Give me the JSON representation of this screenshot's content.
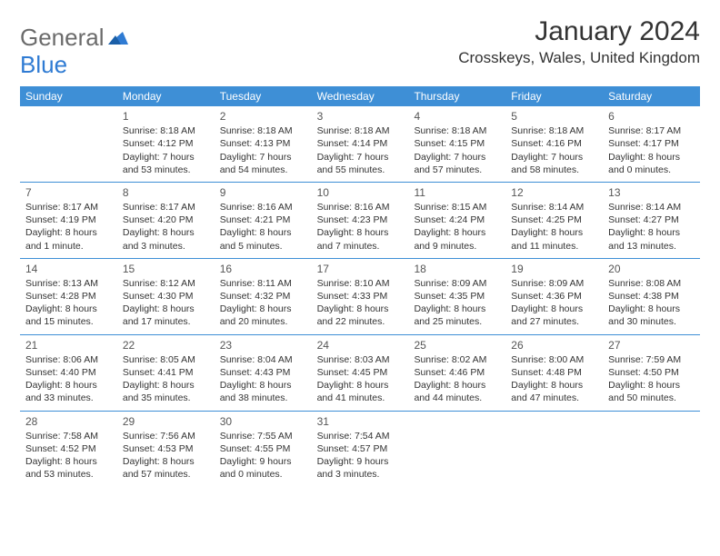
{
  "logo": {
    "text1": "General",
    "text2": "Blue"
  },
  "title": "January 2024",
  "location": "Crosskeys, Wales, United Kingdom",
  "colors": {
    "header_bg": "#3e8fd6",
    "header_text": "#ffffff",
    "body_text": "#333333",
    "logo_gray": "#6b6b6b",
    "logo_blue": "#2f7bd3",
    "divider": "#3e8fd6"
  },
  "weekdays": [
    "Sunday",
    "Monday",
    "Tuesday",
    "Wednesday",
    "Thursday",
    "Friday",
    "Saturday"
  ],
  "weeks": [
    [
      {
        "empty": true
      },
      {
        "num": "1",
        "sunrise": "Sunrise: 8:18 AM",
        "sunset": "Sunset: 4:12 PM",
        "daylight": "Daylight: 7 hours and 53 minutes."
      },
      {
        "num": "2",
        "sunrise": "Sunrise: 8:18 AM",
        "sunset": "Sunset: 4:13 PM",
        "daylight": "Daylight: 7 hours and 54 minutes."
      },
      {
        "num": "3",
        "sunrise": "Sunrise: 8:18 AM",
        "sunset": "Sunset: 4:14 PM",
        "daylight": "Daylight: 7 hours and 55 minutes."
      },
      {
        "num": "4",
        "sunrise": "Sunrise: 8:18 AM",
        "sunset": "Sunset: 4:15 PM",
        "daylight": "Daylight: 7 hours and 57 minutes."
      },
      {
        "num": "5",
        "sunrise": "Sunrise: 8:18 AM",
        "sunset": "Sunset: 4:16 PM",
        "daylight": "Daylight: 7 hours and 58 minutes."
      },
      {
        "num": "6",
        "sunrise": "Sunrise: 8:17 AM",
        "sunset": "Sunset: 4:17 PM",
        "daylight": "Daylight: 8 hours and 0 minutes."
      }
    ],
    [
      {
        "num": "7",
        "sunrise": "Sunrise: 8:17 AM",
        "sunset": "Sunset: 4:19 PM",
        "daylight": "Daylight: 8 hours and 1 minute."
      },
      {
        "num": "8",
        "sunrise": "Sunrise: 8:17 AM",
        "sunset": "Sunset: 4:20 PM",
        "daylight": "Daylight: 8 hours and 3 minutes."
      },
      {
        "num": "9",
        "sunrise": "Sunrise: 8:16 AM",
        "sunset": "Sunset: 4:21 PM",
        "daylight": "Daylight: 8 hours and 5 minutes."
      },
      {
        "num": "10",
        "sunrise": "Sunrise: 8:16 AM",
        "sunset": "Sunset: 4:23 PM",
        "daylight": "Daylight: 8 hours and 7 minutes."
      },
      {
        "num": "11",
        "sunrise": "Sunrise: 8:15 AM",
        "sunset": "Sunset: 4:24 PM",
        "daylight": "Daylight: 8 hours and 9 minutes."
      },
      {
        "num": "12",
        "sunrise": "Sunrise: 8:14 AM",
        "sunset": "Sunset: 4:25 PM",
        "daylight": "Daylight: 8 hours and 11 minutes."
      },
      {
        "num": "13",
        "sunrise": "Sunrise: 8:14 AM",
        "sunset": "Sunset: 4:27 PM",
        "daylight": "Daylight: 8 hours and 13 minutes."
      }
    ],
    [
      {
        "num": "14",
        "sunrise": "Sunrise: 8:13 AM",
        "sunset": "Sunset: 4:28 PM",
        "daylight": "Daylight: 8 hours and 15 minutes."
      },
      {
        "num": "15",
        "sunrise": "Sunrise: 8:12 AM",
        "sunset": "Sunset: 4:30 PM",
        "daylight": "Daylight: 8 hours and 17 minutes."
      },
      {
        "num": "16",
        "sunrise": "Sunrise: 8:11 AM",
        "sunset": "Sunset: 4:32 PM",
        "daylight": "Daylight: 8 hours and 20 minutes."
      },
      {
        "num": "17",
        "sunrise": "Sunrise: 8:10 AM",
        "sunset": "Sunset: 4:33 PM",
        "daylight": "Daylight: 8 hours and 22 minutes."
      },
      {
        "num": "18",
        "sunrise": "Sunrise: 8:09 AM",
        "sunset": "Sunset: 4:35 PM",
        "daylight": "Daylight: 8 hours and 25 minutes."
      },
      {
        "num": "19",
        "sunrise": "Sunrise: 8:09 AM",
        "sunset": "Sunset: 4:36 PM",
        "daylight": "Daylight: 8 hours and 27 minutes."
      },
      {
        "num": "20",
        "sunrise": "Sunrise: 8:08 AM",
        "sunset": "Sunset: 4:38 PM",
        "daylight": "Daylight: 8 hours and 30 minutes."
      }
    ],
    [
      {
        "num": "21",
        "sunrise": "Sunrise: 8:06 AM",
        "sunset": "Sunset: 4:40 PM",
        "daylight": "Daylight: 8 hours and 33 minutes."
      },
      {
        "num": "22",
        "sunrise": "Sunrise: 8:05 AM",
        "sunset": "Sunset: 4:41 PM",
        "daylight": "Daylight: 8 hours and 35 minutes."
      },
      {
        "num": "23",
        "sunrise": "Sunrise: 8:04 AM",
        "sunset": "Sunset: 4:43 PM",
        "daylight": "Daylight: 8 hours and 38 minutes."
      },
      {
        "num": "24",
        "sunrise": "Sunrise: 8:03 AM",
        "sunset": "Sunset: 4:45 PM",
        "daylight": "Daylight: 8 hours and 41 minutes."
      },
      {
        "num": "25",
        "sunrise": "Sunrise: 8:02 AM",
        "sunset": "Sunset: 4:46 PM",
        "daylight": "Daylight: 8 hours and 44 minutes."
      },
      {
        "num": "26",
        "sunrise": "Sunrise: 8:00 AM",
        "sunset": "Sunset: 4:48 PM",
        "daylight": "Daylight: 8 hours and 47 minutes."
      },
      {
        "num": "27",
        "sunrise": "Sunrise: 7:59 AM",
        "sunset": "Sunset: 4:50 PM",
        "daylight": "Daylight: 8 hours and 50 minutes."
      }
    ],
    [
      {
        "num": "28",
        "sunrise": "Sunrise: 7:58 AM",
        "sunset": "Sunset: 4:52 PM",
        "daylight": "Daylight: 8 hours and 53 minutes."
      },
      {
        "num": "29",
        "sunrise": "Sunrise: 7:56 AM",
        "sunset": "Sunset: 4:53 PM",
        "daylight": "Daylight: 8 hours and 57 minutes."
      },
      {
        "num": "30",
        "sunrise": "Sunrise: 7:55 AM",
        "sunset": "Sunset: 4:55 PM",
        "daylight": "Daylight: 9 hours and 0 minutes."
      },
      {
        "num": "31",
        "sunrise": "Sunrise: 7:54 AM",
        "sunset": "Sunset: 4:57 PM",
        "daylight": "Daylight: 9 hours and 3 minutes."
      },
      {
        "empty": true
      },
      {
        "empty": true
      },
      {
        "empty": true
      }
    ]
  ]
}
